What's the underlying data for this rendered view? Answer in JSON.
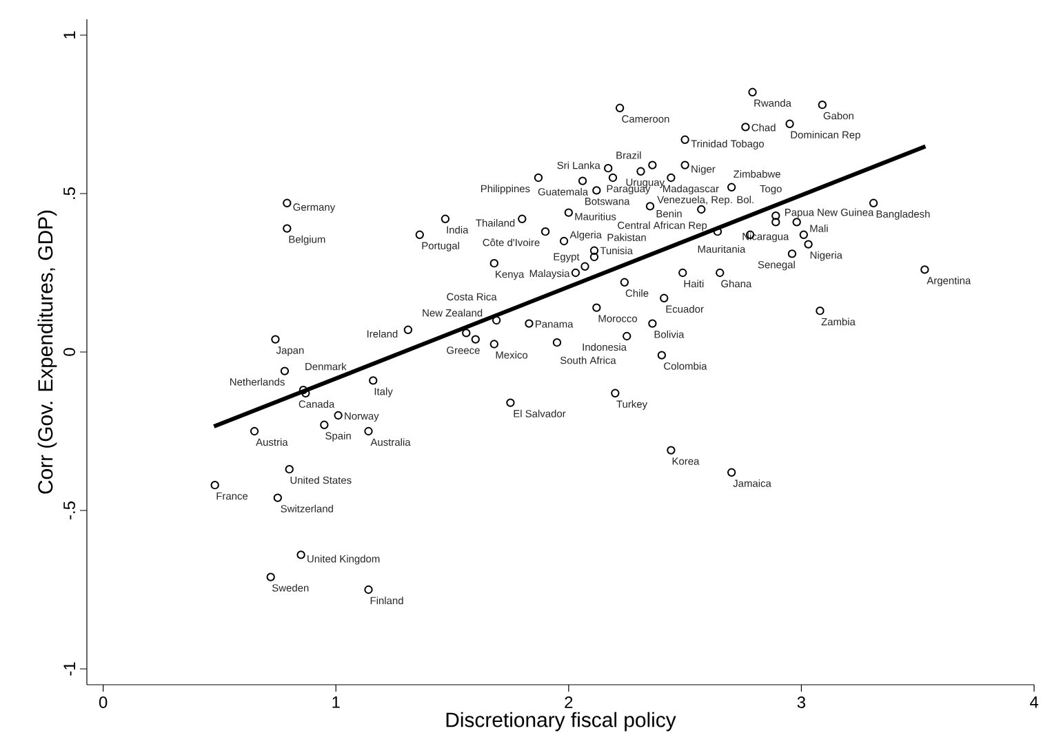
{
  "chart_data": {
    "type": "scatter",
    "xlabel": "Discretionary fiscal policy",
    "ylabel": "Corr (Gov. Expenditures, GDP)",
    "xlim": [
      -0.07,
      4
    ],
    "ylim": [
      -1.05,
      1.05
    ],
    "xticks": [
      0,
      1,
      2,
      3,
      4
    ],
    "yticks": [
      {
        "value": -1,
        "label": "-1"
      },
      {
        "value": -0.5,
        "label": "-.5"
      },
      0,
      {
        "value": 0.5,
        "label": ".5"
      },
      1
    ],
    "series": [
      {
        "marker": "circle",
        "color": "#000000",
        "x": [
          2.79,
          3.09,
          2.22,
          2.76,
          2.95,
          2.5,
          3.31,
          2.7,
          0.79,
          0.79,
          1.47,
          1.36,
          1.8,
          2.0,
          1.87,
          2.12,
          2.35,
          2.57,
          1.9,
          1.98,
          2.11,
          2.11,
          2.07,
          2.03,
          1.68,
          2.24,
          2.49,
          2.65,
          3.53,
          2.12,
          2.41,
          3.08,
          2.36,
          2.25,
          2.4,
          1.69,
          1.83,
          1.31,
          1.56,
          1.6,
          1.68,
          1.95,
          0.74,
          0.78,
          0.86,
          0.87,
          1.16,
          1.01,
          0.95,
          1.14,
          0.65,
          1.75,
          2.2,
          2.44,
          2.7,
          0.8,
          0.48,
          0.75,
          0.85,
          0.72,
          1.14,
          2.64,
          2.78,
          2.89,
          2.89,
          2.98,
          3.01,
          3.03,
          2.96,
          2.17,
          2.31,
          2.36,
          2.5,
          2.06,
          2.19,
          2.44
        ],
        "values": [
          0.82,
          0.78,
          0.77,
          0.71,
          0.72,
          0.67,
          0.47,
          0.52,
          0.47,
          0.39,
          0.42,
          0.37,
          0.42,
          0.44,
          0.55,
          0.51,
          0.46,
          0.45,
          0.38,
          0.35,
          0.32,
          0.3,
          0.27,
          0.25,
          0.28,
          0.22,
          0.25,
          0.25,
          0.26,
          0.14,
          0.17,
          0.13,
          0.09,
          0.05,
          -0.01,
          0.1,
          0.09,
          0.07,
          0.06,
          0.04,
          0.025,
          0.03,
          0.04,
          -0.06,
          -0.12,
          -0.13,
          -0.09,
          -0.2,
          -0.23,
          -0.25,
          -0.25,
          -0.16,
          -0.13,
          -0.31,
          -0.38,
          -0.37,
          -0.42,
          -0.46,
          -0.64,
          -0.71,
          -0.75,
          0.38,
          0.37,
          0.43,
          0.41,
          0.41,
          0.37,
          0.34,
          0.31,
          0.58,
          0.57,
          0.59,
          0.59,
          0.54,
          0.55,
          0.55
        ],
        "value_labels": [
          "Rwanda",
          "Gabon",
          "Cameroon",
          "Chad",
          "Dominican Rep",
          "Trinidad Tobago",
          "Bangladesh",
          "Zimbabwe",
          "Germany",
          "Belgium",
          "India",
          "Portugal",
          "Thailand",
          "Mauritius",
          "Philippines",
          "Botswana",
          "Benin",
          "Venezuela, Rep. Bol.",
          "Côte d'Ivoire",
          "Algeria",
          "Pakistan",
          "Tunisia",
          "Egypt",
          "Malaysia",
          "Kenya",
          "Chile",
          "Haiti",
          "Ghana",
          "Argentina",
          "Morocco",
          "Ecuador",
          "Zambia",
          "Bolivia",
          "Indonesia",
          "Colombia",
          "Costa Rica",
          "Panama",
          "Ireland",
          "New Zealand",
          "Greece",
          "Mexico",
          "South Africa",
          "Japan",
          "Netherlands",
          "Denmark",
          "Canada",
          "Italy",
          "Norway",
          "Spain",
          "Australia",
          "Austria",
          "El Salvador",
          "Turkey",
          "Korea",
          "Jamaica",
          "United States",
          "France",
          "Switzerland",
          "United Kingdom",
          "Sweden",
          "Finland",
          "Central African Rep",
          "Mauritania",
          "Togo",
          "Nicaragua",
          "Papua New Guinea",
          "Mali",
          "Nigeria",
          "Senegal",
          "Sri Lanka",
          "Uruguay",
          "Brazil",
          "Niger",
          "Guatemala",
          "Paraguay",
          "Madagascar"
        ]
      },
      {
        "type": "line",
        "color": "#000000",
        "x": [
          0.476,
          3.533
        ],
        "values": [
          -0.235,
          0.649
        ]
      }
    ]
  }
}
